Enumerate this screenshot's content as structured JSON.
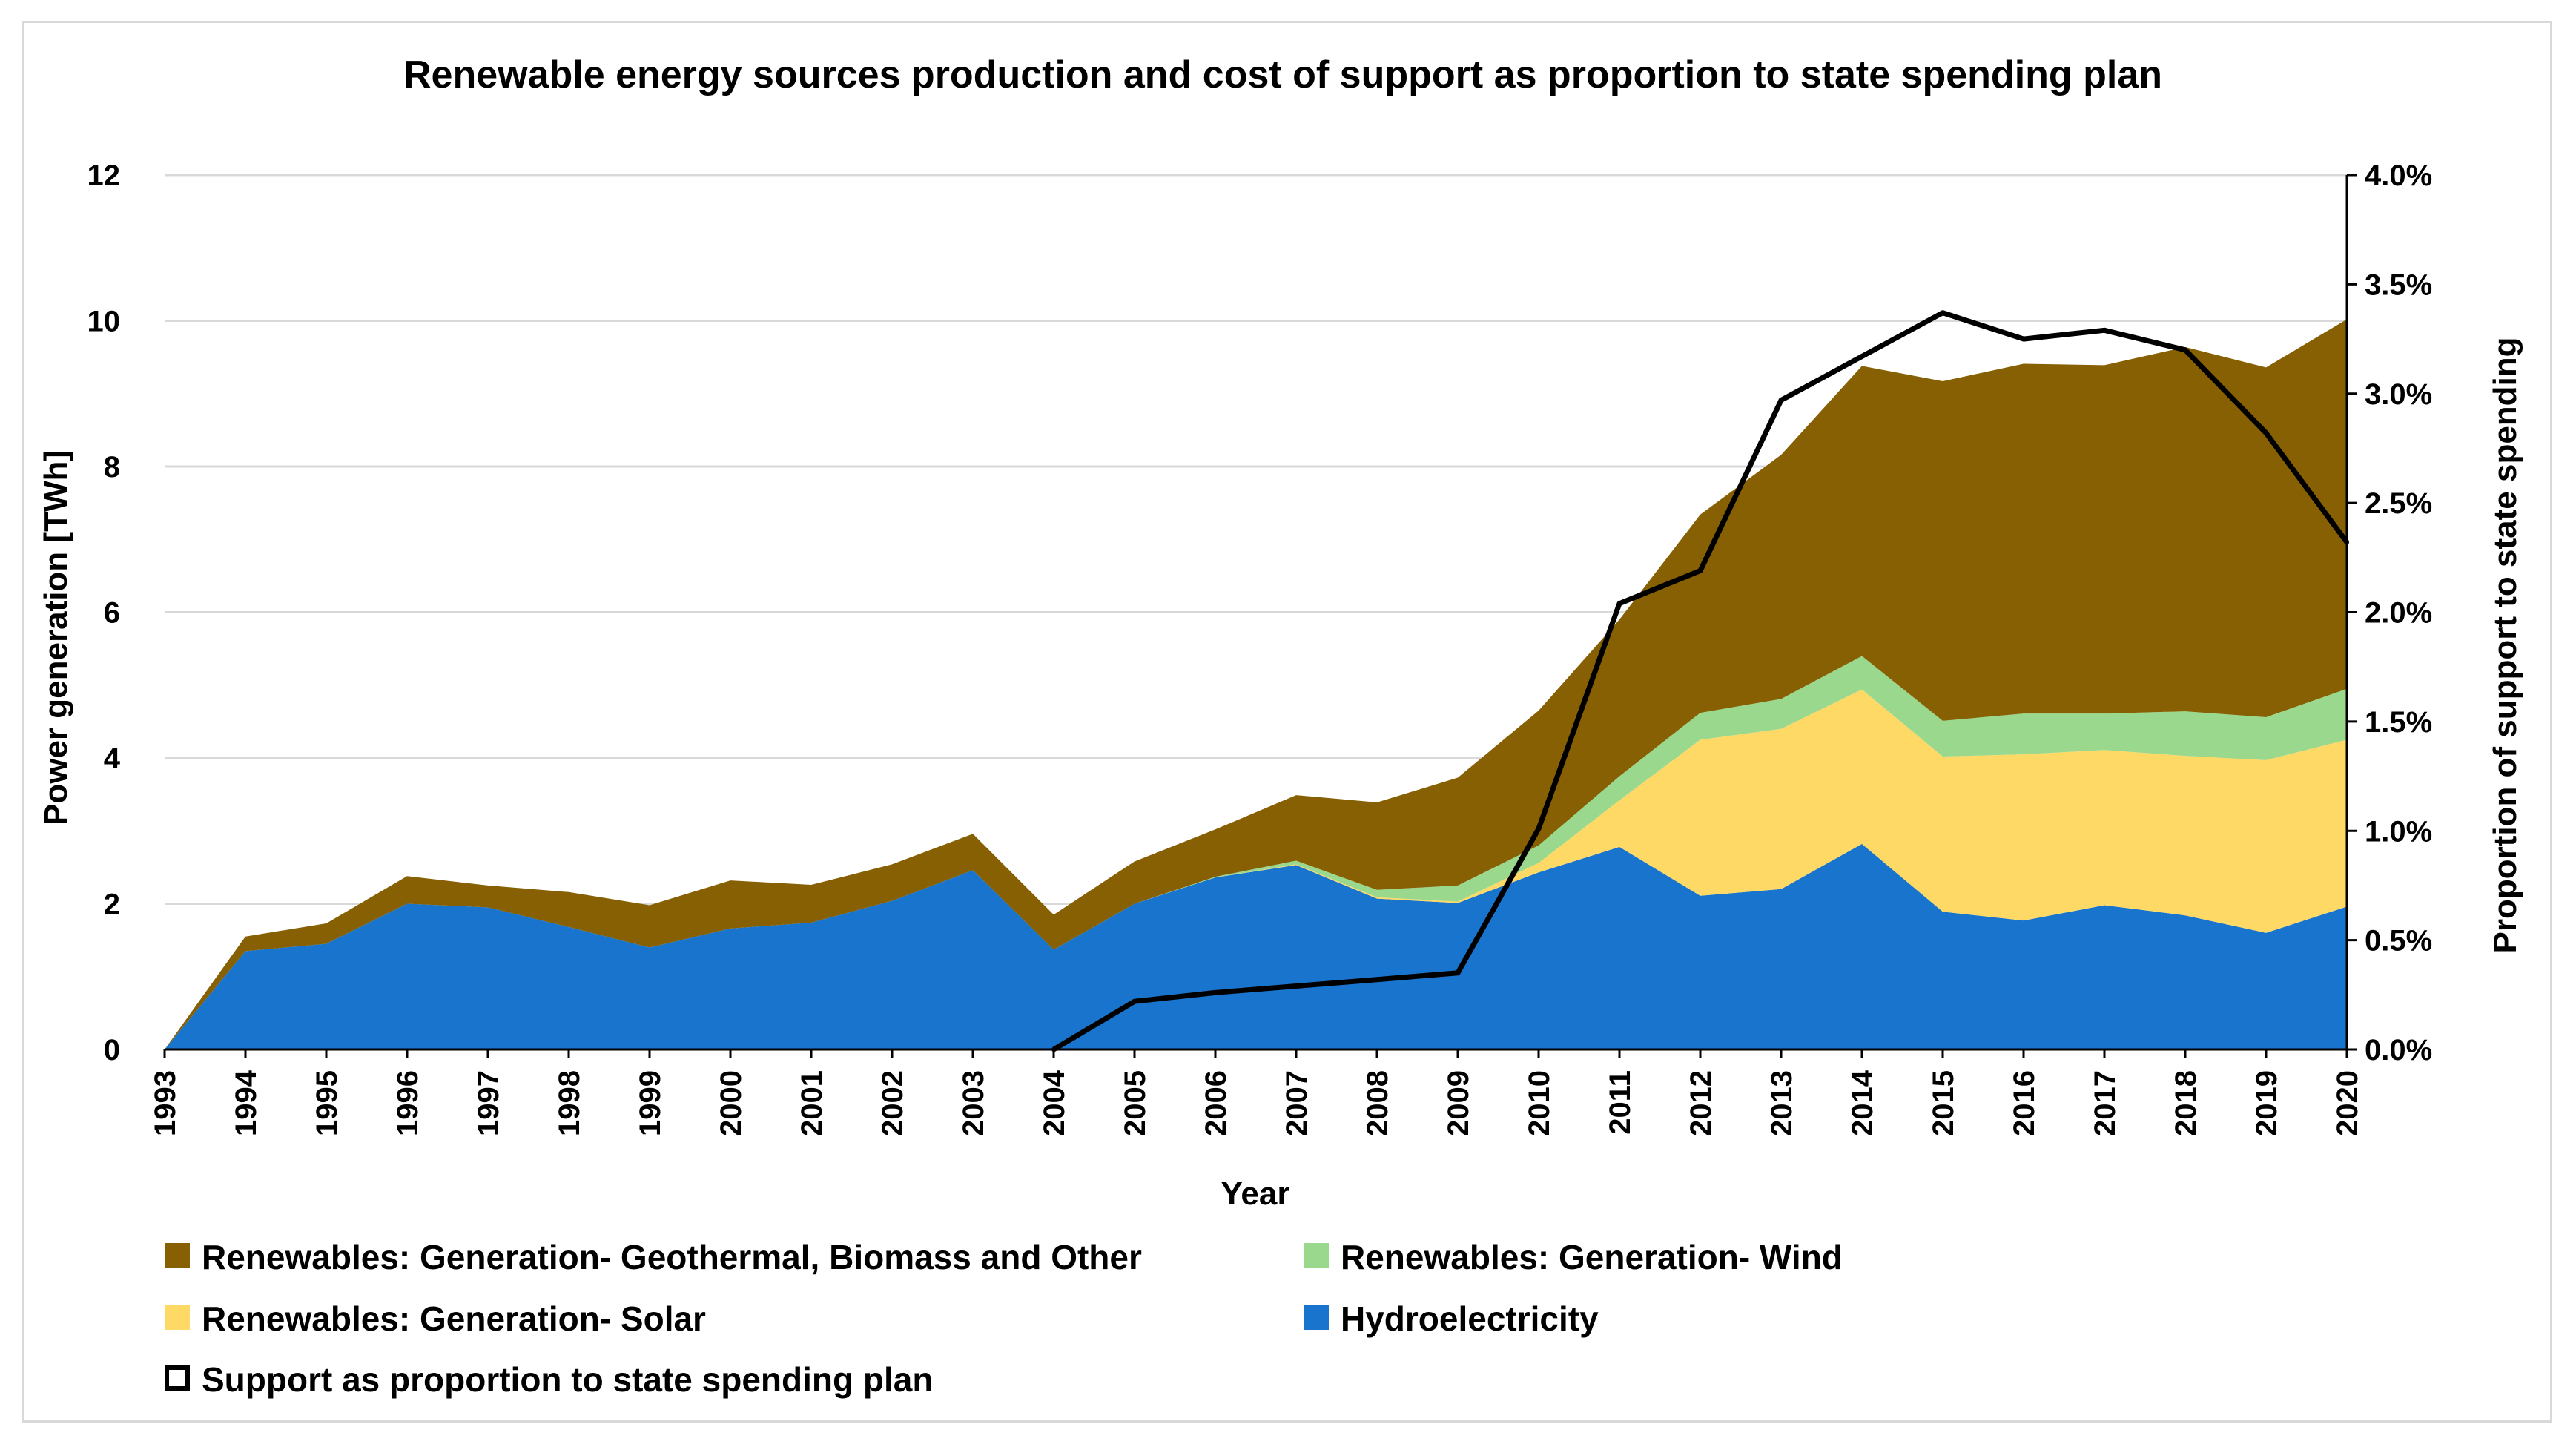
{
  "chart_data": {
    "type": "area",
    "title": "Renewable energy sources production and cost of support as proportion to state spending plan",
    "xlabel": "Year",
    "ylabel": "Power generation [TWh]",
    "y2label": "Proportion of support to state spending",
    "ylim": [
      0,
      12
    ],
    "y2lim": [
      0,
      0.04
    ],
    "yticks": [
      "0",
      "2",
      "4",
      "6",
      "8",
      "10",
      "12"
    ],
    "y2ticks": [
      "0.0%",
      "0.5%",
      "1.0%",
      "1.5%",
      "2.0%",
      "2.5%",
      "3.0%",
      "3.5%",
      "4.0%"
    ],
    "categories": [
      "1993",
      "1994",
      "1995",
      "1996",
      "1997",
      "1998",
      "1999",
      "2000",
      "2001",
      "2002",
      "2003",
      "2004",
      "2005",
      "2006",
      "2007",
      "2008",
      "2009",
      "2010",
      "2011",
      "2012",
      "2013",
      "2014",
      "2015",
      "2016",
      "2017",
      "2018",
      "2019",
      "2020"
    ],
    "grid": "horizontal",
    "legend_position": "bottom",
    "series": [
      {
        "name": "Hydroelectricity",
        "stack": "area",
        "color": "#1874cd",
        "values": [
          0,
          1.35,
          1.45,
          2.0,
          1.95,
          1.68,
          1.4,
          1.66,
          1.74,
          2.04,
          2.46,
          1.37,
          2.0,
          2.36,
          2.53,
          2.07,
          2.01,
          2.43,
          2.78,
          2.11,
          2.2,
          2.82,
          1.89,
          1.77,
          1.98,
          1.84,
          1.6,
          1.96
        ]
      },
      {
        "name": "Renewables: Generation- Solar",
        "stack": "area",
        "color": "#ffd966",
        "values": [
          0,
          0,
          0,
          0,
          0,
          0,
          0,
          0,
          0,
          0,
          0,
          0,
          0,
          0,
          0.01,
          0.02,
          0.02,
          0.13,
          0.64,
          2.14,
          2.2,
          2.12,
          2.13,
          2.28,
          2.13,
          2.19,
          2.37,
          2.29
        ]
      },
      {
        "name": "Renewables: Generation- Wind",
        "stack": "area",
        "color": "#9ad88d",
        "values": [
          0,
          0,
          0,
          0,
          0,
          0,
          0,
          0,
          0,
          0,
          0,
          0,
          0,
          0.01,
          0.05,
          0.1,
          0.22,
          0.24,
          0.33,
          0.37,
          0.41,
          0.46,
          0.49,
          0.56,
          0.5,
          0.61,
          0.59,
          0.7
        ]
      },
      {
        "name": "Renewables: Generation- Geothermal, Biomass and Other",
        "stack": "area",
        "color": "#866003",
        "values": [
          0,
          0.2,
          0.28,
          0.38,
          0.3,
          0.48,
          0.58,
          0.66,
          0.52,
          0.5,
          0.5,
          0.48,
          0.58,
          0.65,
          0.9,
          1.2,
          1.48,
          1.85,
          2.15,
          2.72,
          3.35,
          3.98,
          4.66,
          4.8,
          4.78,
          5.0,
          4.8,
          5.07
        ]
      },
      {
        "name": "Support as proportion to state spending plan",
        "axis": "secondary",
        "type": "line",
        "color": "#000000",
        "values": [
          null,
          null,
          null,
          null,
          null,
          null,
          null,
          null,
          null,
          null,
          null,
          0.0,
          0.0022,
          0.0026,
          0.0029,
          0.0032,
          0.0035,
          0.0101,
          0.0204,
          0.0219,
          0.0297,
          0.0317,
          0.0337,
          0.0325,
          0.0329,
          0.032,
          0.0282,
          0.0232
        ]
      }
    ],
    "legend": [
      {
        "label": "Renewables: Generation- Geothermal, Biomass and Other",
        "color": "#866003",
        "kind": "fill"
      },
      {
        "label": "Renewables: Generation- Wind",
        "color": "#9ad88d",
        "kind": "fill"
      },
      {
        "label": "Renewables: Generation- Solar",
        "color": "#ffd966",
        "kind": "fill"
      },
      {
        "label": "Hydroelectricity",
        "color": "#1874cd",
        "kind": "fill"
      },
      {
        "label": "Support as proportion to state spending plan",
        "color": "#000000",
        "kind": "outline"
      }
    ]
  }
}
